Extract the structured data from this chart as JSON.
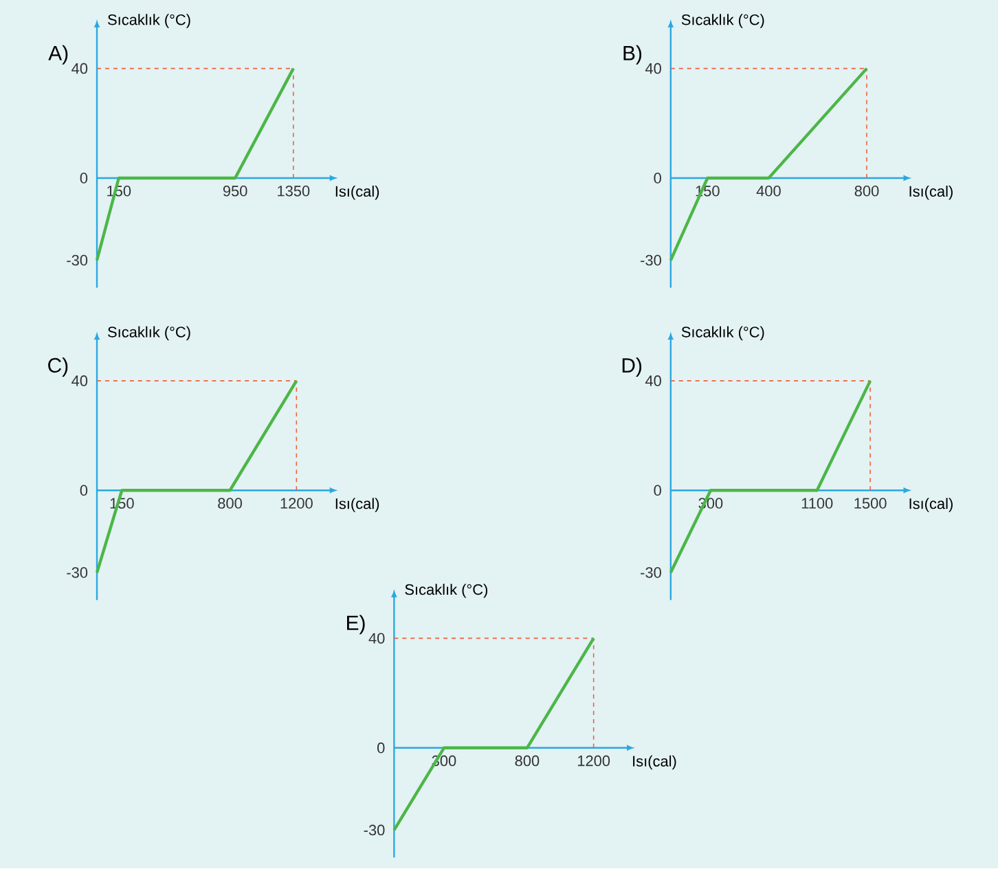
{
  "chart_data": [
    {
      "type": "line",
      "title": "A)",
      "xlabel": "Isı(cal)",
      "ylabel": "Sıcaklık (°C)",
      "x": [
        0,
        150,
        950,
        1350
      ],
      "series": [
        {
          "color": "#4cb648",
          "values": [
            -30,
            0,
            0,
            40
          ]
        }
      ],
      "xlim": [
        0,
        1600
      ],
      "ylim": [
        -40,
        55
      ],
      "xticks": [
        150,
        950,
        1350
      ],
      "yticks": [
        -30,
        0,
        40
      ],
      "ref_lines": [
        {
          "axis": "y",
          "value": 40,
          "color": "#f0603c",
          "line_style": "dashed"
        },
        {
          "axis": "x",
          "value": 1350,
          "color": "#f0603c",
          "line_style": "dashed"
        }
      ]
    },
    {
      "type": "line",
      "title": "B)",
      "xlabel": "Isı(cal)",
      "ylabel": "Sıcaklık (°C)",
      "x": [
        0,
        150,
        400,
        800
      ],
      "series": [
        {
          "color": "#4cb648",
          "values": [
            -30,
            0,
            0,
            40
          ]
        }
      ],
      "xlim": [
        0,
        950
      ],
      "ylim": [
        -40,
        55
      ],
      "xticks": [
        150,
        400,
        800
      ],
      "yticks": [
        -30,
        0,
        40
      ],
      "ref_lines": [
        {
          "axis": "y",
          "value": 40,
          "color": "#f0603c",
          "line_style": "dashed"
        },
        {
          "axis": "x",
          "value": 800,
          "color": "#f0603c",
          "line_style": "dashed"
        }
      ]
    },
    {
      "type": "line",
      "title": "C)",
      "xlabel": "Isı(cal)",
      "ylabel": "Sıcaklık (°C)",
      "x": [
        0,
        150,
        800,
        1200
      ],
      "series": [
        {
          "color": "#4cb648",
          "values": [
            -30,
            0,
            0,
            40
          ]
        }
      ],
      "xlim": [
        0,
        1400
      ],
      "ylim": [
        -40,
        55
      ],
      "xticks": [
        150,
        800,
        1200
      ],
      "yticks": [
        -30,
        0,
        40
      ],
      "ref_lines": [
        {
          "axis": "y",
          "value": 40,
          "color": "#f0603c",
          "line_style": "dashed"
        },
        {
          "axis": "x",
          "value": 1200,
          "color": "#f0603c",
          "line_style": "dashed"
        }
      ]
    },
    {
      "type": "line",
      "title": "D)",
      "xlabel": "Isı(cal)",
      "ylabel": "Sıcaklık (°C)",
      "x": [
        0,
        300,
        1100,
        1500
      ],
      "series": [
        {
          "color": "#4cb648",
          "values": [
            -30,
            0,
            0,
            40
          ]
        }
      ],
      "xlim": [
        0,
        1750
      ],
      "ylim": [
        -40,
        55
      ],
      "xticks": [
        300,
        1100,
        1500
      ],
      "yticks": [
        -30,
        0,
        40
      ],
      "ref_lines": [
        {
          "axis": "y",
          "value": 40,
          "color": "#f0603c",
          "line_style": "dashed"
        },
        {
          "axis": "x",
          "value": 1500,
          "color": "#f0603c",
          "line_style": "dashed"
        }
      ]
    },
    {
      "type": "line",
      "title": "E)",
      "xlabel": "Isı(cal)",
      "ylabel": "Sıcaklık (°C)",
      "x": [
        0,
        300,
        800,
        1200
      ],
      "series": [
        {
          "color": "#4cb648",
          "values": [
            -30,
            0,
            0,
            40
          ]
        }
      ],
      "xlim": [
        0,
        1400
      ],
      "ylim": [
        -40,
        55
      ],
      "xticks": [
        300,
        800,
        1200
      ],
      "yticks": [
        -30,
        0,
        40
      ],
      "ref_lines": [
        {
          "axis": "y",
          "value": 40,
          "color": "#f0603c",
          "line_style": "dashed"
        },
        {
          "axis": "x",
          "value": 1200,
          "color": "#f0603c",
          "line_style": "dashed"
        }
      ]
    }
  ]
}
